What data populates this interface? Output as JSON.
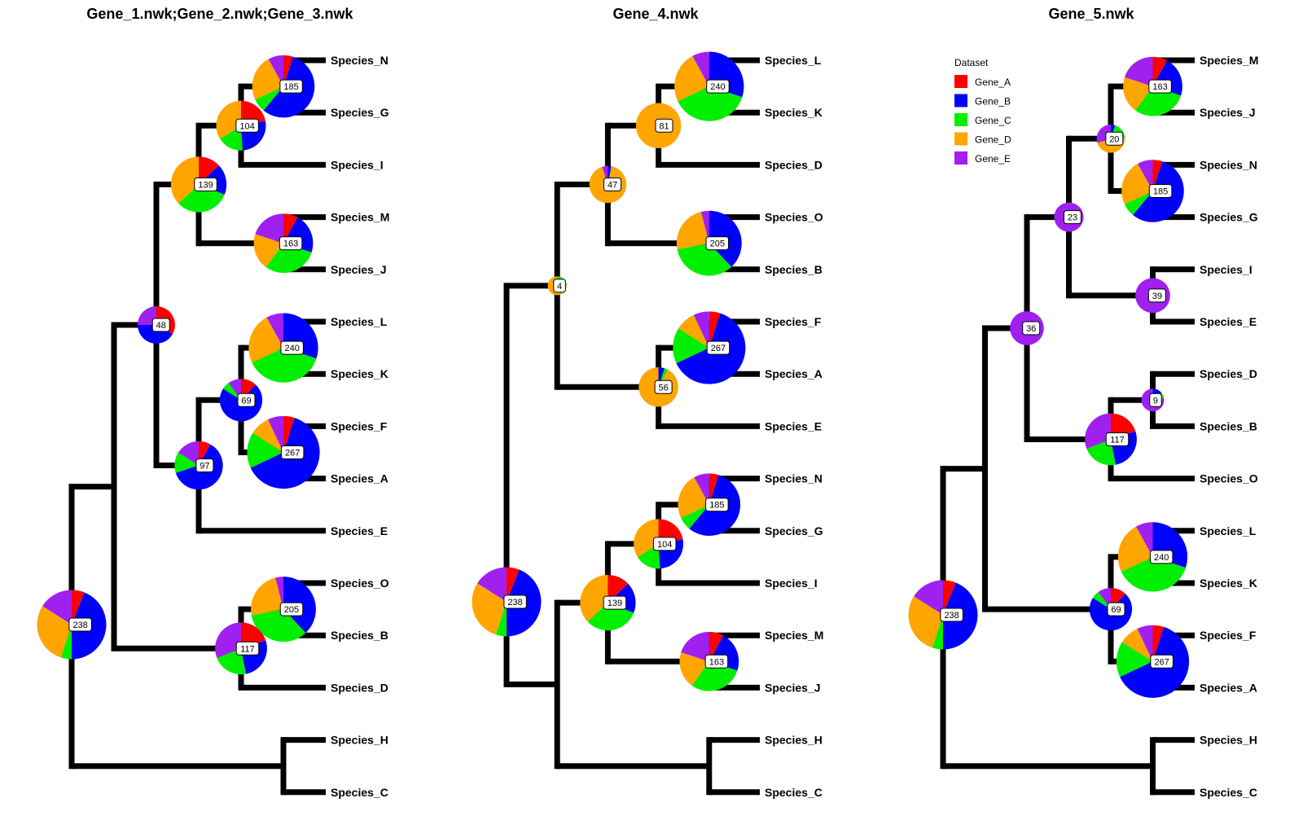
{
  "colors": {
    "Gene_A": "#ff0000",
    "Gene_B": "#0000ff",
    "Gene_C": "#00ee00",
    "Gene_D": "#ffa500",
    "Gene_E": "#a020f0",
    "branch": "#000000"
  },
  "legend": {
    "title": "Dataset",
    "items": [
      {
        "key": "Gene_A",
        "label": "Gene_A"
      },
      {
        "key": "Gene_B",
        "label": "Gene_B"
      },
      {
        "key": "Gene_C",
        "label": "Gene_C"
      },
      {
        "key": "Gene_D",
        "label": "Gene_D"
      },
      {
        "key": "Gene_E",
        "label": "Gene_E"
      }
    ]
  },
  "panels": [
    {
      "title": "Gene_1.nwk;Gene_2.nwk;Gene_3.nwk",
      "tree": {
        "name": "238",
        "value": 238,
        "slices": [
          0.06,
          0.44,
          0.05,
          0.29,
          0.16
        ],
        "children": [
          {
            "children": [
              {
                "name": "48",
                "value": 48,
                "slices": [
                  0.33,
                  0.42,
                  0.0,
                  0.0,
                  0.25
                ],
                "children": [
                  {
                    "name": "139",
                    "value": 139,
                    "slices": [
                      0.13,
                      0.18,
                      0.32,
                      0.37,
                      0.0
                    ],
                    "children": [
                      {
                        "name": "104",
                        "value": 104,
                        "slices": [
                          0.22,
                          0.27,
                          0.17,
                          0.34,
                          0.0
                        ],
                        "children": [
                          {
                            "name": "185",
                            "value": 185,
                            "slices": [
                              0.05,
                              0.56,
                              0.07,
                              0.24,
                              0.08
                            ],
                            "children": [
                              {
                                "tip": "Species_N"
                              },
                              {
                                "tip": "Species_G"
                              }
                            ]
                          },
                          {
                            "tip": "Species_I"
                          }
                        ]
                      },
                      {
                        "name": "163",
                        "value": 163,
                        "slices": [
                          0.08,
                          0.22,
                          0.3,
                          0.2,
                          0.2
                        ],
                        "children": [
                          {
                            "tip": "Species_M"
                          },
                          {
                            "tip": "Species_J"
                          }
                        ]
                      }
                    ]
                  },
                  {
                    "name": "97",
                    "value": 97,
                    "slices": [
                      0.08,
                      0.62,
                      0.14,
                      0.0,
                      0.16
                    ],
                    "children": [
                      {
                        "name": "69",
                        "value": 69,
                        "slices": [
                          0.12,
                          0.72,
                          0.06,
                          0.0,
                          0.1
                        ],
                        "children": [
                          {
                            "name": "240",
                            "value": 240,
                            "slices": [
                              0.0,
                              0.3,
                              0.38,
                              0.24,
                              0.08
                            ],
                            "children": [
                              {
                                "tip": "Species_L"
                              },
                              {
                                "tip": "Species_K"
                              }
                            ]
                          },
                          {
                            "name": "267",
                            "value": 267,
                            "slices": [
                              0.05,
                              0.63,
                              0.16,
                              0.09,
                              0.07
                            ],
                            "children": [
                              {
                                "tip": "Species_F"
                              },
                              {
                                "tip": "Species_A"
                              }
                            ]
                          }
                        ]
                      },
                      {
                        "tip": "Species_E"
                      }
                    ]
                  }
                ]
              },
              {
                "name": "117",
                "value": 117,
                "slices": [
                  0.2,
                  0.27,
                  0.22,
                  0.0,
                  0.31
                ],
                "children": [
                  {
                    "name": "205",
                    "value": 205,
                    "slices": [
                      0.0,
                      0.38,
                      0.34,
                      0.24,
                      0.04
                    ],
                    "children": [
                      {
                        "tip": "Species_O"
                      },
                      {
                        "tip": "Species_B"
                      }
                    ]
                  },
                  {
                    "tip": "Species_D"
                  }
                ]
              }
            ]
          },
          {
            "children": [
              {
                "tip": "Species_H"
              },
              {
                "tip": "Species_C"
              }
            ]
          }
        ]
      }
    },
    {
      "title": "Gene_4.nwk",
      "tree": {
        "name": "238",
        "value": 238,
        "slices": [
          0.06,
          0.44,
          0.05,
          0.29,
          0.16
        ],
        "children": [
          {
            "name": "4",
            "value": 4,
            "slices": [
              0.0,
              0.0,
              0.25,
              0.75,
              0.0
            ],
            "children": [
              {
                "name": "47",
                "value": 47,
                "slices": [
                  0.0,
                  0.03,
                  0.0,
                  0.92,
                  0.05
                ],
                "children": [
                  {
                    "name": "81",
                    "value": 81,
                    "slices": [
                      0.0,
                      0.0,
                      0.0,
                      1.0,
                      0.0
                    ],
                    "children": [
                      {
                        "name": "240",
                        "value": 240,
                        "slices": [
                          0.0,
                          0.3,
                          0.38,
                          0.24,
                          0.08
                        ],
                        "children": [
                          {
                            "tip": "Species_L"
                          },
                          {
                            "tip": "Species_K"
                          }
                        ]
                      },
                      {
                        "tip": "Species_D"
                      }
                    ]
                  },
                  {
                    "name": "205",
                    "value": 205,
                    "slices": [
                      0.0,
                      0.38,
                      0.34,
                      0.24,
                      0.04
                    ],
                    "children": [
                      {
                        "tip": "Species_O"
                      },
                      {
                        "tip": "Species_B"
                      }
                    ]
                  }
                ]
              },
              {
                "name": "56",
                "value": 56,
                "slices": [
                  0.0,
                  0.05,
                  0.03,
                  0.92,
                  0.0
                ],
                "children": [
                  {
                    "name": "267",
                    "value": 267,
                    "slices": [
                      0.05,
                      0.63,
                      0.16,
                      0.09,
                      0.07
                    ],
                    "children": [
                      {
                        "tip": "Species_F"
                      },
                      {
                        "tip": "Species_A"
                      }
                    ]
                  },
                  {
                    "tip": "Species_E"
                  }
                ]
              }
            ]
          },
          {
            "children": [
              {
                "name": "139",
                "value": 139,
                "slices": [
                  0.13,
                  0.18,
                  0.32,
                  0.37,
                  0.0
                ],
                "children": [
                  {
                    "name": "104",
                    "value": 104,
                    "slices": [
                      0.22,
                      0.27,
                      0.17,
                      0.34,
                      0.0
                    ],
                    "children": [
                      {
                        "name": "185",
                        "value": 185,
                        "slices": [
                          0.05,
                          0.56,
                          0.07,
                          0.24,
                          0.08
                        ],
                        "children": [
                          {
                            "tip": "Species_N"
                          },
                          {
                            "tip": "Species_G"
                          }
                        ]
                      },
                      {
                        "tip": "Species_I"
                      }
                    ]
                  },
                  {
                    "name": "163",
                    "value": 163,
                    "slices": [
                      0.08,
                      0.22,
                      0.3,
                      0.2,
                      0.2
                    ],
                    "children": [
                      {
                        "tip": "Species_M"
                      },
                      {
                        "tip": "Species_J"
                      }
                    ]
                  }
                ]
              },
              {
                "children": [
                  {
                    "tip": "Species_H"
                  },
                  {
                    "tip": "Species_C"
                  }
                ]
              }
            ]
          }
        ]
      }
    },
    {
      "title": "Gene_5.nwk",
      "tree": {
        "name": "238",
        "value": 238,
        "slices": [
          0.06,
          0.44,
          0.05,
          0.29,
          0.16
        ],
        "children": [
          {
            "children": [
              {
                "name": "36",
                "value": 36,
                "slices": [
                  0.0,
                  0.0,
                  0.0,
                  0.0,
                  1.0
                ],
                "children": [
                  {
                    "name": "23",
                    "value": 23,
                    "slices": [
                      0.0,
                      0.0,
                      0.0,
                      0.0,
                      1.0
                    ],
                    "children": [
                      {
                        "name": "20",
                        "value": 20,
                        "slices": [
                          0.0,
                          0.05,
                          0.2,
                          0.45,
                          0.3
                        ],
                        "children": [
                          {
                            "name": "163",
                            "value": 163,
                            "slices": [
                              0.08,
                              0.22,
                              0.3,
                              0.2,
                              0.2
                            ],
                            "children": [
                              {
                                "tip": "Species_M"
                              },
                              {
                                "tip": "Species_J"
                              }
                            ]
                          },
                          {
                            "name": "185",
                            "value": 185,
                            "slices": [
                              0.05,
                              0.56,
                              0.07,
                              0.24,
                              0.08
                            ],
                            "children": [
                              {
                                "tip": "Species_N"
                              },
                              {
                                "tip": "Species_G"
                              }
                            ]
                          }
                        ]
                      },
                      {
                        "name": "39",
                        "value": 39,
                        "slices": [
                          0.0,
                          0.0,
                          0.0,
                          0.0,
                          1.0
                        ],
                        "children": [
                          {
                            "tip": "Species_I"
                          },
                          {
                            "tip": "Species_E"
                          }
                        ]
                      }
                    ]
                  },
                  {
                    "name": "117",
                    "value": 117,
                    "slices": [
                      0.2,
                      0.27,
                      0.22,
                      0.0,
                      0.31
                    ],
                    "children": [
                      {
                        "name": "9",
                        "value": 9,
                        "slices": [
                          0.0,
                          0.15,
                          0.07,
                          0.0,
                          0.78
                        ],
                        "children": [
                          {
                            "tip": "Species_D"
                          },
                          {
                            "tip": "Species_B"
                          }
                        ]
                      },
                      {
                        "tip": "Species_O"
                      }
                    ]
                  }
                ]
              },
              {
                "name": "69",
                "value": 69,
                "slices": [
                  0.12,
                  0.72,
                  0.06,
                  0.0,
                  0.1
                ],
                "children": [
                  {
                    "name": "240",
                    "value": 240,
                    "slices": [
                      0.0,
                      0.3,
                      0.38,
                      0.24,
                      0.08
                    ],
                    "children": [
                      {
                        "tip": "Species_L"
                      },
                      {
                        "tip": "Species_K"
                      }
                    ]
                  },
                  {
                    "name": "267",
                    "value": 267,
                    "slices": [
                      0.05,
                      0.63,
                      0.16,
                      0.09,
                      0.07
                    ],
                    "children": [
                      {
                        "tip": "Species_F"
                      },
                      {
                        "tip": "Species_A"
                      }
                    ]
                  }
                ]
              }
            ]
          },
          {
            "children": [
              {
                "tip": "Species_H"
              },
              {
                "tip": "Species_C"
              }
            ]
          }
        ]
      }
    }
  ]
}
